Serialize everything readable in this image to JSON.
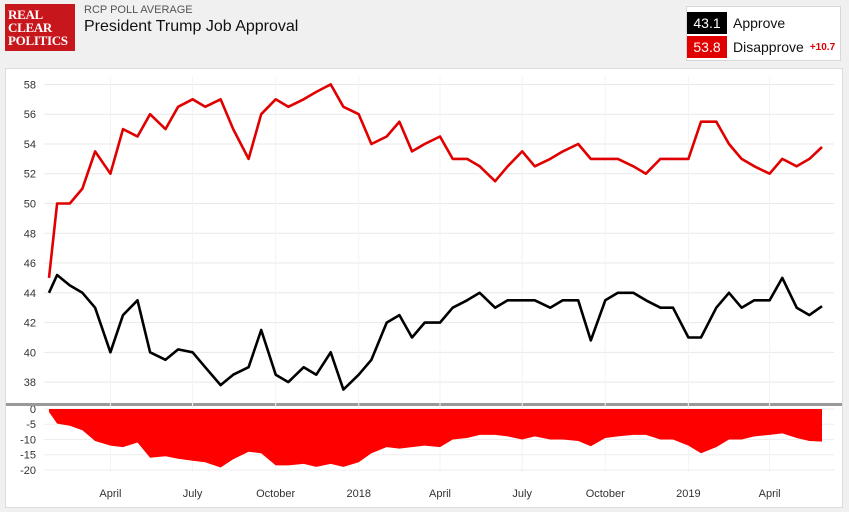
{
  "header": {
    "logo_lines": [
      "REAL",
      "CLEAR",
      "POLITICS"
    ],
    "subtitle": "RCP POLL AVERAGE",
    "title": "President Trump Job Approval"
  },
  "legend": {
    "approve": {
      "value": "43.1",
      "label": "Approve",
      "color": "#000000"
    },
    "disapprove": {
      "value": "53.8",
      "label": "Disapprove",
      "color": "#e00000"
    },
    "spread": "+10.7"
  },
  "chart_data": [
    {
      "type": "line",
      "x": [
        "2017-01-23",
        "2017-02-01",
        "2017-02-15",
        "2017-03-01",
        "2017-03-15",
        "2017-04-01",
        "2017-04-15",
        "2017-05-01",
        "2017-05-15",
        "2017-06-01",
        "2017-06-15",
        "2017-07-01",
        "2017-07-15",
        "2017-08-01",
        "2017-08-15",
        "2017-09-01",
        "2017-09-15",
        "2017-10-01",
        "2017-10-15",
        "2017-11-01",
        "2017-11-15",
        "2017-12-01",
        "2017-12-15",
        "2018-01-01",
        "2018-01-15",
        "2018-02-01",
        "2018-02-15",
        "2018-03-01",
        "2018-03-15",
        "2018-04-01",
        "2018-04-15",
        "2018-05-01",
        "2018-05-15",
        "2018-06-01",
        "2018-06-15",
        "2018-07-01",
        "2018-07-15",
        "2018-08-01",
        "2018-08-15",
        "2018-09-01",
        "2018-09-15",
        "2018-10-01",
        "2018-10-15",
        "2018-11-01",
        "2018-11-15",
        "2018-12-01",
        "2018-12-15",
        "2019-01-01",
        "2019-01-15",
        "2019-02-01",
        "2019-02-15",
        "2019-03-01",
        "2019-03-15",
        "2019-04-01",
        "2019-04-15",
        "2019-05-01",
        "2019-05-15",
        "2019-05-29"
      ],
      "series": [
        {
          "name": "Approve",
          "color": "#000000",
          "values": [
            44.0,
            45.2,
            44.5,
            44.0,
            43.0,
            40.0,
            42.5,
            43.5,
            40.0,
            39.5,
            40.2,
            40.0,
            39.0,
            37.8,
            38.5,
            39.0,
            41.5,
            38.5,
            38.0,
            39.0,
            38.5,
            40.0,
            37.5,
            38.5,
            39.5,
            42.0,
            42.5,
            41.0,
            42.0,
            42.0,
            43.0,
            43.5,
            44.0,
            43.0,
            43.5,
            43.5,
            43.5,
            43.0,
            43.5,
            43.5,
            40.8,
            43.5,
            44.0,
            44.0,
            43.5,
            43.0,
            43.0,
            41.0,
            41.0,
            43.0,
            44.0,
            43.0,
            43.5,
            43.5,
            45.0,
            43.0,
            42.5,
            43.1
          ]
        },
        {
          "name": "Disapprove",
          "color": "#e00000",
          "values": [
            45.0,
            50.0,
            50.0,
            51.0,
            53.5,
            52.0,
            55.0,
            54.5,
            56.0,
            55.0,
            56.5,
            57.0,
            56.5,
            57.0,
            55.0,
            53.0,
            56.0,
            57.0,
            56.5,
            57.0,
            57.5,
            58.0,
            56.5,
            56.0,
            54.0,
            54.5,
            55.5,
            53.5,
            54.0,
            54.5,
            53.0,
            53.0,
            52.5,
            51.5,
            52.5,
            53.5,
            52.5,
            53.0,
            53.5,
            54.0,
            53.0,
            53.0,
            53.0,
            52.5,
            52.0,
            53.0,
            53.0,
            53.0,
            55.5,
            55.5,
            54.0,
            53.0,
            52.5,
            52.0,
            53.0,
            52.5,
            53.0,
            53.8
          ]
        }
      ],
      "ylim": [
        37,
        58.5
      ],
      "yticks": [
        38,
        40,
        42,
        44,
        46,
        48,
        50,
        52,
        54,
        56,
        58
      ],
      "xtick_labels": [
        "April",
        "July",
        "October",
        "2018",
        "April",
        "July",
        "October",
        "2019",
        "April"
      ],
      "grid": true
    },
    {
      "type": "area",
      "series": [
        {
          "name": "Spread",
          "color": "#ff0000",
          "values": [
            -1.0,
            -4.8,
            -5.5,
            -7.0,
            -10.5,
            -12.0,
            -12.5,
            -11.0,
            -16.0,
            -15.5,
            -16.3,
            -17.0,
            -17.5,
            -19.2,
            -16.5,
            -14.0,
            -14.5,
            -18.5,
            -18.5,
            -18.0,
            -19.0,
            -18.0,
            -19.0,
            -17.5,
            -14.5,
            -12.5,
            -13.0,
            -12.5,
            -12.0,
            -12.5,
            -10.0,
            -9.5,
            -8.5,
            -8.5,
            -9.0,
            -10.0,
            -9.0,
            -10.0,
            -10.0,
            -10.5,
            -12.2,
            -9.5,
            -9.0,
            -8.5,
            -8.5,
            -10.0,
            -10.0,
            -12.0,
            -14.5,
            -12.5,
            -10.0,
            -10.0,
            -9.0,
            -8.5,
            -8.0,
            -9.5,
            -10.5,
            -10.7
          ]
        }
      ],
      "ylim": [
        -21,
        0
      ],
      "yticks": [
        0,
        -5,
        -10,
        -15,
        -20
      ]
    }
  ]
}
